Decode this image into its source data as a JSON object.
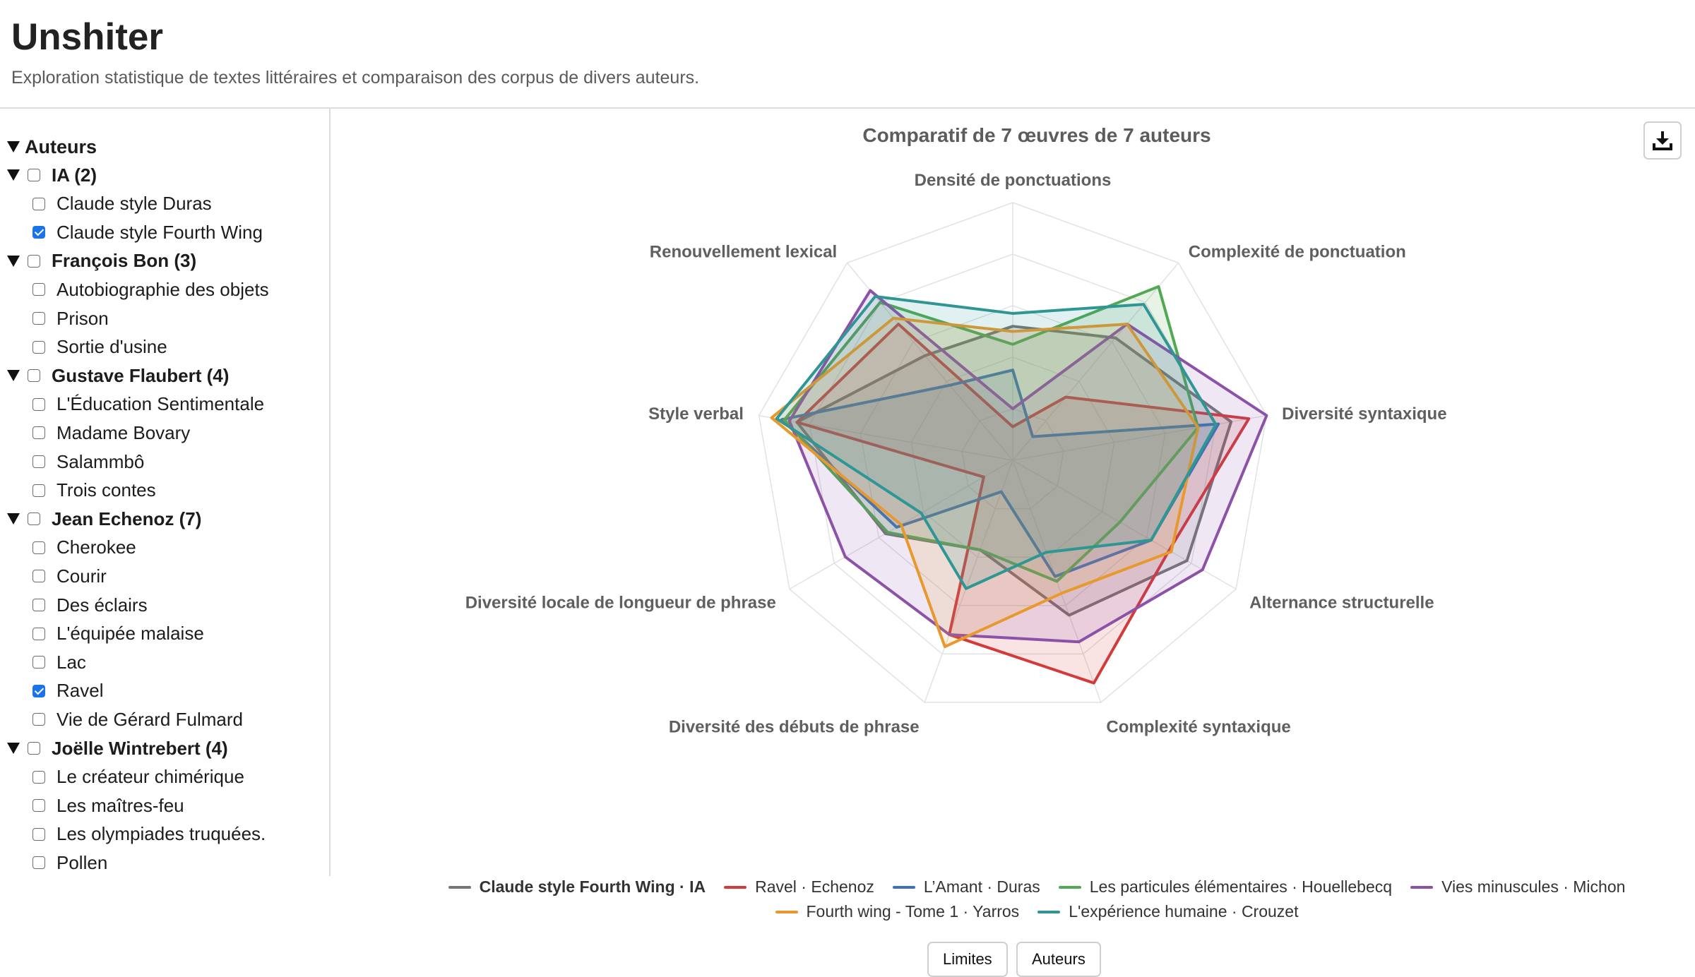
{
  "app": {
    "title": "Unshiter",
    "subtitle": "Exploration statistique de textes littéraires et comparaison des corpus de divers auteurs."
  },
  "sidebar": {
    "root_label": "Auteurs",
    "groups": [
      {
        "label": "IA (2)",
        "items": [
          {
            "label": "Claude style Duras",
            "checked": false
          },
          {
            "label": "Claude style Fourth Wing",
            "checked": true
          }
        ]
      },
      {
        "label": "François Bon (3)",
        "items": [
          {
            "label": "Autobiographie des objets",
            "checked": false
          },
          {
            "label": "Prison",
            "checked": false
          },
          {
            "label": "Sortie d'usine",
            "checked": false
          }
        ]
      },
      {
        "label": "Gustave Flaubert (4)",
        "items": [
          {
            "label": "L'Éducation Sentimentale",
            "checked": false
          },
          {
            "label": "Madame Bovary",
            "checked": false
          },
          {
            "label": "Salammbô",
            "checked": false
          },
          {
            "label": "Trois contes",
            "checked": false
          }
        ]
      },
      {
        "label": "Jean Echenoz (7)",
        "items": [
          {
            "label": "Cherokee",
            "checked": false
          },
          {
            "label": "Courir",
            "checked": false
          },
          {
            "label": "Des éclairs",
            "checked": false
          },
          {
            "label": "L'équipée malaise",
            "checked": false
          },
          {
            "label": "Lac",
            "checked": false
          },
          {
            "label": "Ravel",
            "checked": true
          },
          {
            "label": "Vie de Gérard Fulmard",
            "checked": false
          }
        ]
      },
      {
        "label": "Joëlle Wintrebert (4)",
        "items": [
          {
            "label": "Le créateur chimérique",
            "checked": false
          },
          {
            "label": "Les maîtres-feu",
            "checked": false
          },
          {
            "label": "Les olympiades truquées.",
            "checked": false
          },
          {
            "label": "Pollen",
            "checked": false
          }
        ]
      }
    ]
  },
  "toolbar": {
    "download_icon": "download-icon",
    "limits_label": "Limites",
    "authors_label": "Auteurs"
  },
  "chart_data": {
    "type": "radar",
    "title": "Comparatif de 7 œuvres de 7 auteurs",
    "axes": [
      "Densité de ponctuations",
      "Complexité de ponctuation",
      "Diversité syntaxique",
      "Alternance structurelle",
      "Complexité syntaxique",
      "Diversité des débuts de phrase",
      "Diversité locale de longueur de phrase",
      "Style verbal",
      "Renouvellement lexical"
    ],
    "range": [
      0,
      1
    ],
    "grid_levels": 5,
    "legend_position": "bottom",
    "series": [
      {
        "name": "Claude style Fourth Wing · IA",
        "color": "#767676",
        "bold": true,
        "values": [
          0.52,
          0.62,
          0.86,
          0.78,
          0.64,
          0.37,
          0.57,
          0.85,
          0.53
        ]
      },
      {
        "name": "Ravel · Echenoz",
        "color": "#d33a3a",
        "values": [
          0.13,
          0.32,
          0.93,
          0.7,
          0.92,
          0.72,
          0.13,
          0.85,
          0.69
        ]
      },
      {
        "name": "L’Amant · Duras",
        "color": "#3c72b7",
        "values": [
          0.35,
          0.12,
          0.81,
          0.62,
          0.48,
          0.13,
          0.52,
          0.91,
          0.38
        ]
      },
      {
        "name": "Les particules élémentaires · Houellebecq",
        "color": "#52a853",
        "values": [
          0.45,
          0.88,
          0.73,
          0.48,
          0.5,
          0.37,
          0.56,
          0.9,
          0.8
        ]
      },
      {
        "name": "Vies minuscules · Michon",
        "color": "#8c52a8",
        "values": [
          0.2,
          0.69,
          1.0,
          0.85,
          0.75,
          0.72,
          0.75,
          0.88,
          0.86
        ]
      },
      {
        "name": "Fourth wing - Tome 1 · Yarros",
        "color": "#e8992e",
        "values": [
          0.5,
          0.69,
          0.73,
          0.71,
          0.55,
          0.77,
          0.5,
          0.95,
          0.72
        ]
      },
      {
        "name": "L'expérience humaine · Crouzet",
        "color": "#2e9693",
        "values": [
          0.57,
          0.79,
          0.8,
          0.62,
          0.38,
          0.53,
          0.41,
          0.93,
          0.83
        ]
      }
    ]
  }
}
